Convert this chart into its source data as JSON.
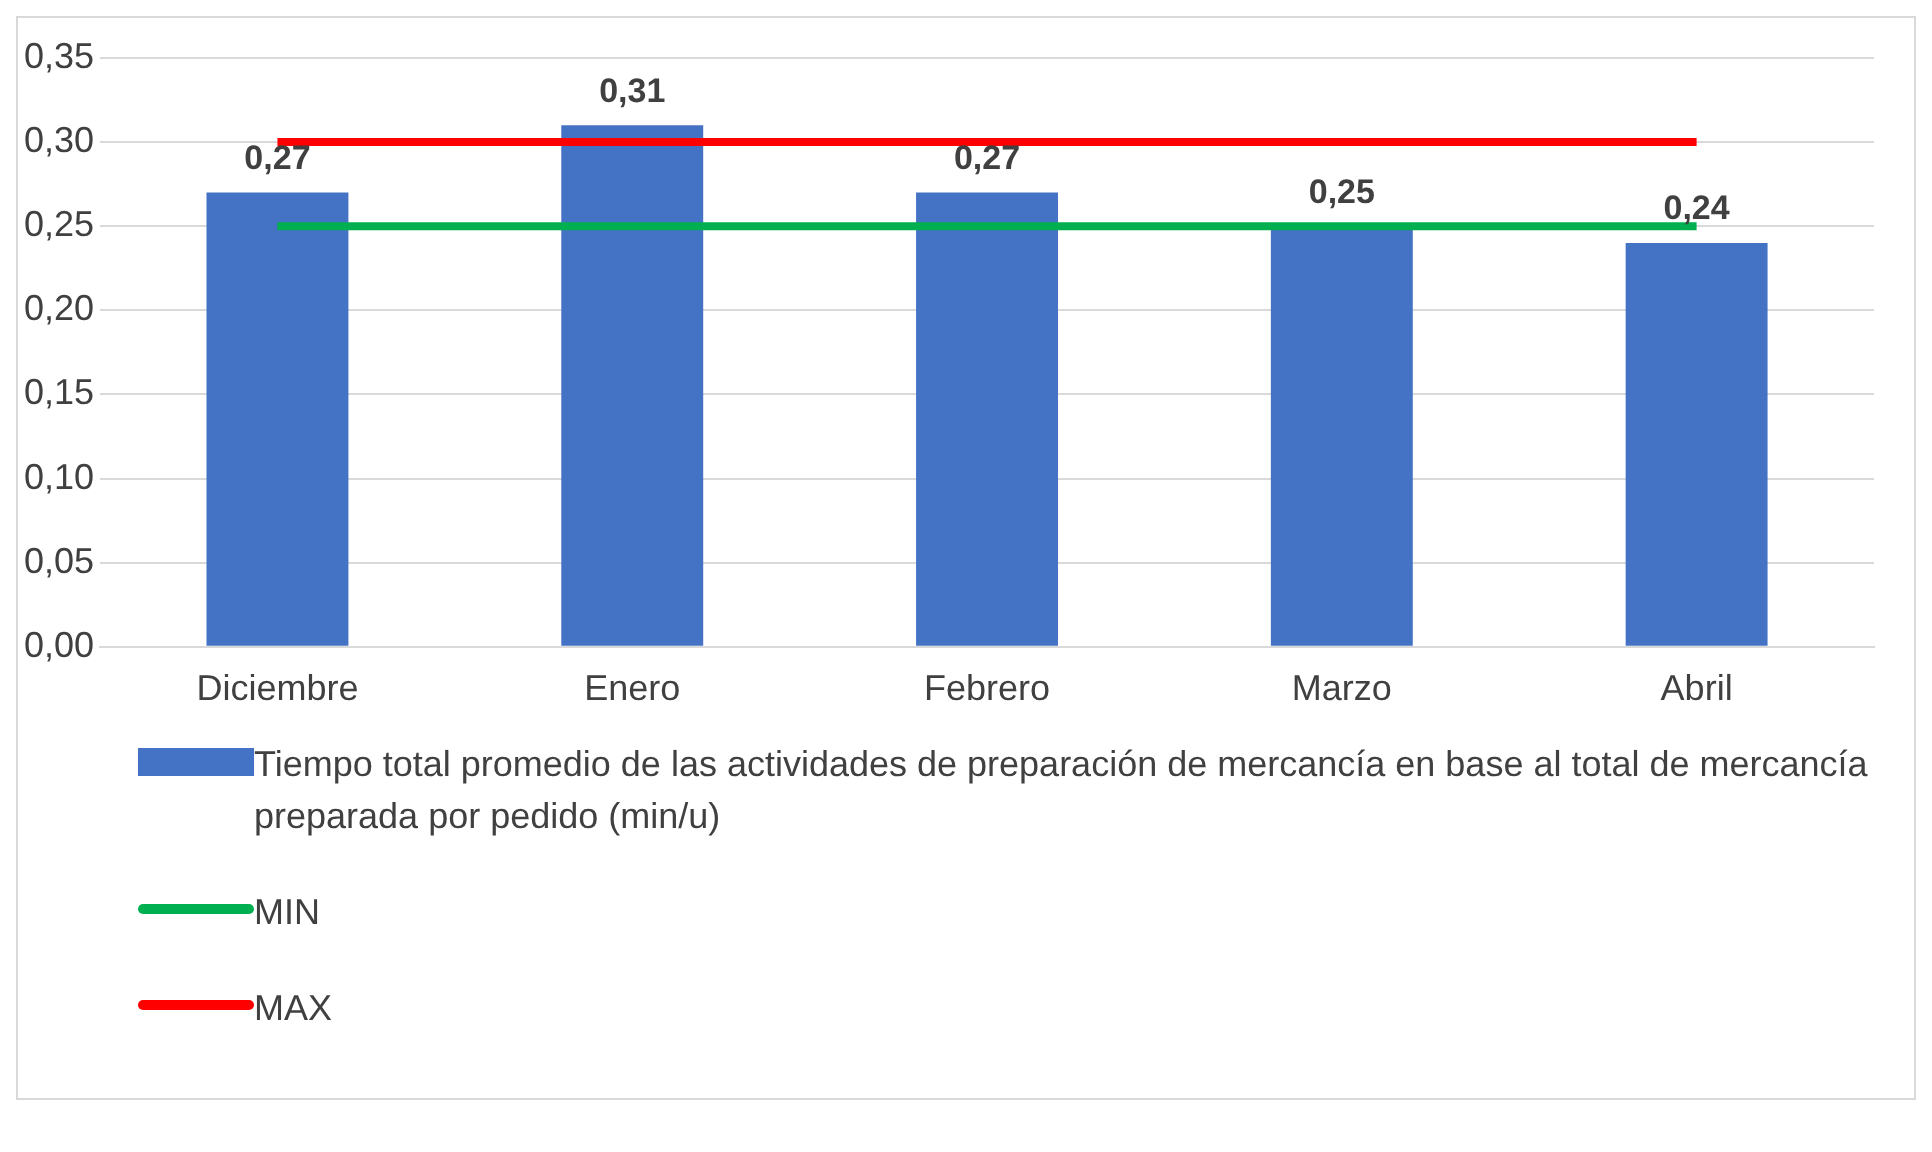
{
  "chart_data": {
    "type": "bar",
    "categories": [
      "Diciembre",
      "Enero",
      "Febrero",
      "Marzo",
      "Abril"
    ],
    "series": [
      {
        "name": "Tiempo total promedio de las actividades de preparación de mercancía en base al total de mercancía preparada por pedido (min/u)",
        "color": "#4472c4",
        "values": [
          0.27,
          0.31,
          0.27,
          0.25,
          0.24
        ],
        "value_labels": [
          "0,27",
          "0,31",
          "0,27",
          "0,25",
          "0,24"
        ]
      },
      {
        "type": "line",
        "name": "MIN",
        "color": "#00b050",
        "values": [
          0.25,
          0.25,
          0.25,
          0.25,
          0.25
        ]
      },
      {
        "type": "line",
        "name": "MAX",
        "color": "#ff0000",
        "values": [
          0.3,
          0.3,
          0.3,
          0.3,
          0.3
        ]
      }
    ],
    "ylim": [
      0,
      0.35
    ],
    "yticks": [
      {
        "value": 0,
        "label": "0,00"
      },
      {
        "value": 0.05,
        "label": "0,05"
      },
      {
        "value": 0.1,
        "label": "0,10"
      },
      {
        "value": 0.15,
        "label": "0,15"
      },
      {
        "value": 0.2,
        "label": "0,20"
      },
      {
        "value": 0.25,
        "label": "0,25"
      },
      {
        "value": 0.3,
        "label": "0,30"
      },
      {
        "value": 0.35,
        "label": "0,35"
      }
    ],
    "grid": "y",
    "legend": "bottom",
    "marker": "none"
  }
}
